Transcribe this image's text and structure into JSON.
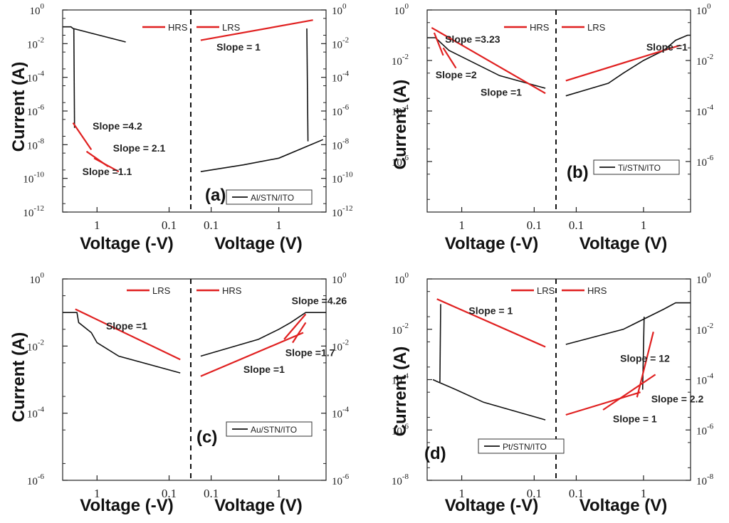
{
  "figure": {
    "width_desc": "four-panel I-V characteristics figure"
  },
  "chart_data": [
    {
      "type": "line",
      "panel": "(a)",
      "device": "Al/STN/ITO",
      "legend": [
        "HRS",
        "LRS"
      ],
      "left_xlabel": "Voltage (-V)",
      "right_xlabel": "Voltage (V)",
      "ylabel": "Current (A)",
      "yscale": "log",
      "ylim_exp": [
        -12,
        0
      ],
      "ytick_exps": [
        0,
        -2,
        -4,
        -6,
        -8,
        -10,
        -12
      ],
      "left_xlim": [
        3,
        0.05
      ],
      "right_xlim": [
        0.05,
        5
      ],
      "left_xticks": [
        {
          "v": 1,
          "label": "1"
        },
        {
          "v": 0.1,
          "label": "0.1"
        }
      ],
      "right_xticks": [
        {
          "v": 0.1,
          "label": "0.1"
        },
        {
          "v": 1,
          "label": "1"
        }
      ],
      "black_left": [
        [
          [
            3,
            -1
          ],
          [
            2.3,
            -1
          ],
          [
            2.15,
            -1.1
          ],
          [
            0.4,
            -1.9
          ]
        ],
        [
          [
            2.1,
            -1.1
          ],
          [
            2.05,
            -7
          ]
        ]
      ],
      "black_right": [
        [
          [
            0.07,
            -9.6
          ],
          [
            0.3,
            -9.2
          ],
          [
            1,
            -8.8
          ],
          [
            3,
            -8.0
          ],
          [
            4.5,
            -7.7
          ]
        ],
        [
          [
            2.6,
            -1.1
          ],
          [
            2.7,
            -7.8
          ]
        ]
      ],
      "red_left": [
        [
          [
            2.15,
            -6.7
          ],
          [
            1.2,
            -8.3
          ]
        ],
        [
          [
            1.4,
            -8.4
          ],
          [
            0.7,
            -9.3
          ]
        ],
        [
          [
            1.1,
            -8.8
          ],
          [
            0.5,
            -9.6
          ]
        ]
      ],
      "red_right": [
        [
          [
            0.07,
            -1.8
          ],
          [
            3.2,
            -0.6
          ]
        ]
      ],
      "annotations": [
        {
          "text": "Slope =4.2",
          "side": "left",
          "v": 1.15,
          "e": -7.1
        },
        {
          "text": "Slope = 2.1",
          "side": "left",
          "v": 0.6,
          "e": -8.4
        },
        {
          "text": "Slope =1.1",
          "side": "left",
          "v": 1.6,
          "e": -9.8
        },
        {
          "text": "Slope = 1",
          "side": "right",
          "v": 0.12,
          "e": -2.4
        }
      ]
    },
    {
      "type": "line",
      "panel": "(b)",
      "device": "Ti/STN/ITO",
      "legend": [
        "HRS",
        "LRS"
      ],
      "left_xlabel": "Voltage (-V)",
      "right_xlabel": "Voltage (V)",
      "ylabel": "Current (A)",
      "yscale": "log",
      "ylim_exp": [
        -8,
        0
      ],
      "ytick_exps": [
        0,
        -2,
        -4,
        -6
      ],
      "left_xlim": [
        3,
        0.05
      ],
      "right_xlim": [
        0.05,
        5
      ],
      "left_xticks": [
        {
          "v": 1,
          "label": "1"
        },
        {
          "v": 0.1,
          "label": "0.1"
        }
      ],
      "right_xticks": [
        {
          "v": 0.1,
          "label": "0.1"
        },
        {
          "v": 1,
          "label": "1"
        }
      ],
      "black_left": [
        [
          [
            3,
            -1.1
          ],
          [
            2.3,
            -1.1
          ],
          [
            1.5,
            -1.6
          ],
          [
            0.3,
            -2.6
          ],
          [
            0.07,
            -3.1
          ]
        ]
      ],
      "black_right": [
        [
          [
            0.07,
            -3.4
          ],
          [
            0.3,
            -2.9
          ],
          [
            0.5,
            -2.5
          ],
          [
            1,
            -2.0
          ],
          [
            2,
            -1.6
          ],
          [
            3,
            -1.2
          ],
          [
            4.5,
            -1.0
          ],
          [
            5,
            -1.0
          ]
        ]
      ],
      "red_left": [
        [
          [
            2.6,
            -0.7
          ],
          [
            0.07,
            -3.3
          ]
        ],
        [
          [
            2.4,
            -0.9
          ],
          [
            1.8,
            -1.8
          ]
        ],
        [
          [
            1.8,
            -1.5
          ],
          [
            1.2,
            -2.3
          ]
        ]
      ],
      "red_right": [
        [
          [
            0.07,
            -2.8
          ],
          [
            3.5,
            -1.4
          ]
        ]
      ],
      "annotations": [
        {
          "text": "Slope =3.23",
          "side": "left",
          "v": 1.7,
          "e": -1.3
        },
        {
          "text": "Slope =2",
          "side": "left",
          "v": 2.3,
          "e": -2.7
        },
        {
          "text": "Slope =1",
          "side": "left",
          "v": 0.55,
          "e": -3.4
        },
        {
          "text": "Slope =1",
          "side": "right",
          "v": 1.1,
          "e": -1.6
        }
      ]
    },
    {
      "type": "line",
      "panel": "(c)",
      "device": "Au/STN/ITO",
      "legend": [
        "LRS",
        "HRS"
      ],
      "left_xlabel": "Voltage (-V)",
      "right_xlabel": "Voltage (V)",
      "ylabel": "Current (A)",
      "yscale": "log",
      "ylim_exp": [
        -6,
        0
      ],
      "ytick_exps": [
        0,
        -2,
        -4,
        -6
      ],
      "left_xlim": [
        3,
        0.05
      ],
      "right_xlim": [
        0.05,
        5
      ],
      "left_xticks": [
        {
          "v": 1,
          "label": "1"
        },
        {
          "v": 0.1,
          "label": "0.1"
        }
      ],
      "right_xticks": [
        {
          "v": 0.1,
          "label": "0.1"
        },
        {
          "v": 1,
          "label": "1"
        }
      ],
      "black_left": [
        [
          [
            3,
            -1.0
          ],
          [
            1.9,
            -1.0
          ],
          [
            1.8,
            -1.3
          ],
          [
            1.2,
            -1.6
          ],
          [
            1.0,
            -1.9
          ],
          [
            0.5,
            -2.3
          ],
          [
            0.07,
            -2.8
          ]
        ]
      ],
      "black_right": [
        [
          [
            0.07,
            -2.3
          ],
          [
            0.5,
            -1.8
          ],
          [
            1.0,
            -1.5
          ],
          [
            1.5,
            -1.3
          ],
          [
            2.5,
            -1.0
          ],
          [
            5,
            -1.0
          ]
        ]
      ],
      "red_left": [
        [
          [
            2.0,
            -0.9
          ],
          [
            0.07,
            -2.4
          ]
        ]
      ],
      "red_right": [
        [
          [
            0.07,
            -2.9
          ],
          [
            2.3,
            -1.6
          ]
        ],
        [
          [
            1.2,
            -1.8
          ],
          [
            2.5,
            -1.05
          ]
        ],
        [
          [
            1.6,
            -1.9
          ],
          [
            2.5,
            -1.3
          ]
        ]
      ],
      "annotations": [
        {
          "text": "Slope =1",
          "side": "left",
          "v": 0.75,
          "e": -1.5
        },
        {
          "text": "Slope =4.26",
          "side": "right",
          "v": 1.55,
          "e": -0.75
        },
        {
          "text": "Slope =1.7",
          "side": "right",
          "v": 1.25,
          "e": -2.3
        },
        {
          "text": "Slope =1",
          "side": "right",
          "v": 0.3,
          "e": -2.8
        }
      ]
    },
    {
      "type": "line",
      "panel": "(d)",
      "device": "Pt/STN/ITO",
      "legend": [
        "LRS",
        "HRS"
      ],
      "left_xlabel": "Voltage (-V)",
      "right_xlabel": "Voltage (V)",
      "ylabel": "Current (A)",
      "yscale": "log",
      "ylim_exp": [
        -8,
        0
      ],
      "ytick_exps": [
        0,
        -2,
        -4,
        -6,
        -8
      ],
      "left_xlim": [
        3,
        0.05
      ],
      "right_xlim": [
        0.05,
        5
      ],
      "left_xticks": [
        {
          "v": 1,
          "label": "1"
        },
        {
          "v": 0.1,
          "label": "0.1"
        }
      ],
      "right_xticks": [
        {
          "v": 0.1,
          "label": "0.1"
        },
        {
          "v": 1,
          "label": "1"
        }
      ],
      "black_left": [
        [
          [
            2.5,
            -4.0
          ],
          [
            2.1,
            -4.1
          ],
          [
            1.2,
            -4.4
          ],
          [
            0.5,
            -4.9
          ],
          [
            0.07,
            -5.6
          ]
        ],
        [
          [
            2.0,
            -4.1
          ],
          [
            1.95,
            -1.0
          ]
        ]
      ],
      "black_right": [
        [
          [
            0.07,
            -2.6
          ],
          [
            0.5,
            -2.0
          ],
          [
            1.0,
            -1.6
          ],
          [
            2.0,
            -1.2
          ],
          [
            3.0,
            -0.95
          ],
          [
            5,
            -0.95
          ]
        ],
        [
          [
            1.02,
            -1.5
          ],
          [
            0.97,
            -4.4
          ]
        ]
      ],
      "red_left": [
        [
          [
            2.2,
            -0.8
          ],
          [
            0.07,
            -2.7
          ]
        ]
      ],
      "red_right": [
        [
          [
            0.07,
            -5.4
          ],
          [
            0.9,
            -4.5
          ]
        ],
        [
          [
            0.25,
            -5.2
          ],
          [
            1.5,
            -3.8
          ]
        ],
        [
          [
            0.8,
            -4.7
          ],
          [
            1.4,
            -2.1
          ]
        ]
      ],
      "annotations": [
        {
          "text": "Slope = 1",
          "side": "left",
          "v": 0.8,
          "e": -1.4
        },
        {
          "text": "Slope = 12",
          "side": "right",
          "v": 0.45,
          "e": -3.3
        },
        {
          "text": "Slope = 2.2",
          "side": "right",
          "v": 1.3,
          "e": -4.9
        },
        {
          "text": "Slope = 1",
          "side": "right",
          "v": 0.35,
          "e": -5.7
        }
      ]
    }
  ]
}
